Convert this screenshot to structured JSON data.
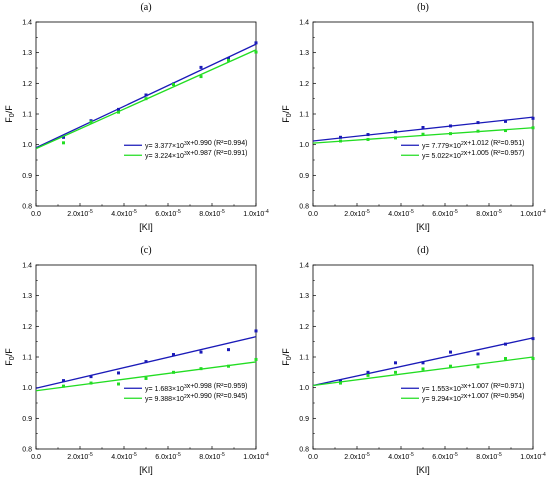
{
  "chart_data": [
    {
      "panel": "(a)",
      "type": "scatter",
      "title": "(a)",
      "xlabel": "[KI]",
      "ylabel": "F0/F",
      "xlim": [
        0,
        0.0001
      ],
      "ylim": [
        0.8,
        1.4
      ],
      "x_tick_labels": [
        "0.0",
        "2.0x10-5",
        "4.0x10-5",
        "6.0x10-5",
        "8.0x10-5",
        "1.0x10-4"
      ],
      "y_tick_labels": [
        "0.8",
        "0.9",
        "1.0",
        "1.1",
        "1.2",
        "1.3",
        "1.4"
      ],
      "grid": false,
      "legend_position": "bottom-right",
      "series": [
        {
          "name": "y= 3.377×10^3x+0.990 (R²=0.994)",
          "color": "#1a1ab8",
          "points": [
            [
              1.25e-05,
              1.024
            ],
            [
              2.5e-05,
              1.078
            ],
            [
              3.75e-05,
              1.115
            ],
            [
              5e-05,
              1.162
            ],
            [
              6.25e-05,
              1.198
            ],
            [
              7.5e-05,
              1.252
            ],
            [
              8.75e-05,
              1.281
            ],
            [
              0.0001,
              1.332
            ]
          ],
          "fit": {
            "slope": 3377,
            "intercept": 0.99
          }
        },
        {
          "name": "y= 3.224×10^3x+0.987 (R²=0.991)",
          "color": "#22dd22",
          "points": [
            [
              1.25e-05,
              1.006
            ],
            [
              2.5e-05,
              1.074
            ],
            [
              3.75e-05,
              1.106
            ],
            [
              5e-05,
              1.15
            ],
            [
              6.25e-05,
              1.196
            ],
            [
              7.5e-05,
              1.222
            ],
            [
              8.75e-05,
              1.275
            ],
            [
              0.0001,
              1.302
            ]
          ],
          "fit": {
            "slope": 3224,
            "intercept": 0.987
          }
        }
      ]
    },
    {
      "panel": "(b)",
      "type": "scatter",
      "title": "(b)",
      "xlabel": "[KI]",
      "ylabel": "F0/F",
      "xlim": [
        0,
        0.0001
      ],
      "ylim": [
        0.8,
        1.4
      ],
      "x_tick_labels": [
        "0.0",
        "2.0x10-5",
        "4.0x10-5",
        "6.0x10-5",
        "8.0x10-5",
        "1.0x10-4"
      ],
      "y_tick_labels": [
        "0.8",
        "0.9",
        "1.0",
        "1.1",
        "1.2",
        "1.3",
        "1.4"
      ],
      "grid": false,
      "legend_position": "bottom-right",
      "series": [
        {
          "name": "y= 7.779×10^2x+1.012 (R²=0.951)",
          "color": "#1a1ab8",
          "points": [
            [
              1.25e-05,
              1.024
            ],
            [
              2.5e-05,
              1.033
            ],
            [
              3.75e-05,
              1.042
            ],
            [
              5e-05,
              1.056
            ],
            [
              6.25e-05,
              1.061
            ],
            [
              7.5e-05,
              1.072
            ],
            [
              8.75e-05,
              1.076
            ],
            [
              0.0001,
              1.086
            ]
          ],
          "fit": {
            "slope": 777.9,
            "intercept": 1.012
          }
        },
        {
          "name": "y= 5.022×10^2x+1.005 (R²=0.957)",
          "color": "#22dd22",
          "points": [
            [
              1.25e-05,
              1.012
            ],
            [
              2.5e-05,
              1.017
            ],
            [
              3.75e-05,
              1.022
            ],
            [
              5e-05,
              1.034
            ],
            [
              6.25e-05,
              1.036
            ],
            [
              7.5e-05,
              1.044
            ],
            [
              8.75e-05,
              1.046
            ],
            [
              0.0001,
              1.055
            ]
          ],
          "fit": {
            "slope": 502.2,
            "intercept": 1.005
          }
        }
      ]
    },
    {
      "panel": "(c)",
      "type": "scatter",
      "title": "(c)",
      "xlabel": "[KI]",
      "ylabel": "F0/F",
      "xlim": [
        0,
        0.0001
      ],
      "ylim": [
        0.8,
        1.4
      ],
      "x_tick_labels": [
        "0.0",
        "2.0x10-5",
        "4.0x10-5",
        "6.0x10-5",
        "8.0x10-5",
        "1.0x10-4"
      ],
      "y_tick_labels": [
        "0.8",
        "0.9",
        "1.0",
        "1.1",
        "1.2",
        "1.3",
        "1.4"
      ],
      "grid": false,
      "legend_position": "bottom-right",
      "series": [
        {
          "name": "y= 1.683×10^3x+0.998 (R²=0.959)",
          "color": "#1a1ab8",
          "points": [
            [
              1.25e-05,
              1.023
            ],
            [
              2.5e-05,
              1.036
            ],
            [
              3.75e-05,
              1.048
            ],
            [
              5e-05,
              1.085
            ],
            [
              6.25e-05,
              1.108
            ],
            [
              7.5e-05,
              1.116
            ],
            [
              8.75e-05,
              1.124
            ],
            [
              0.0001,
              1.185
            ]
          ],
          "fit": {
            "slope": 1683,
            "intercept": 0.998
          }
        },
        {
          "name": "y= 9.388×10^2x+0.990 (R²=0.945)",
          "color": "#22dd22",
          "points": [
            [
              1.25e-05,
              1.005
            ],
            [
              2.5e-05,
              1.015
            ],
            [
              3.75e-05,
              1.012
            ],
            [
              5e-05,
              1.03
            ],
            [
              6.25e-05,
              1.05
            ],
            [
              7.5e-05,
              1.062
            ],
            [
              8.75e-05,
              1.07
            ],
            [
              0.0001,
              1.092
            ]
          ],
          "fit": {
            "slope": 938.8,
            "intercept": 0.99
          }
        }
      ]
    },
    {
      "panel": "(d)",
      "type": "scatter",
      "title": "(d)",
      "xlabel": "[KI]",
      "ylabel": "F0/F",
      "xlim": [
        0,
        0.0001
      ],
      "ylim": [
        0.8,
        1.4
      ],
      "x_tick_labels": [
        "0.0",
        "2.0x10-5",
        "4.0x10-5",
        "6.0x10-5",
        "8.0x10-5",
        "1.0x10-4"
      ],
      "y_tick_labels": [
        "0.8",
        "0.9",
        "1.0",
        "1.1",
        "1.2",
        "1.3",
        "1.4"
      ],
      "grid": false,
      "legend_position": "bottom-right",
      "series": [
        {
          "name": "y= 1.553×10^3x+1.007 (R²=0.971)",
          "color": "#1a1ab8",
          "points": [
            [
              1.25e-05,
              1.022
            ],
            [
              2.5e-05,
              1.05
            ],
            [
              3.75e-05,
              1.081
            ],
            [
              5e-05,
              1.081
            ],
            [
              6.25e-05,
              1.116
            ],
            [
              7.5e-05,
              1.11
            ],
            [
              8.75e-05,
              1.142
            ],
            [
              0.0001,
              1.16
            ]
          ],
          "fit": {
            "slope": 1553,
            "intercept": 1.007
          }
        },
        {
          "name": "y= 9.294×10^2x+1.007 (R²=0.954)",
          "color": "#22dd22",
          "points": [
            [
              1.25e-05,
              1.015
            ],
            [
              2.5e-05,
              1.04
            ],
            [
              3.75e-05,
              1.05
            ],
            [
              5e-05,
              1.061
            ],
            [
              6.25e-05,
              1.07
            ],
            [
              7.5e-05,
              1.068
            ],
            [
              8.75e-05,
              1.095
            ],
            [
              0.0001,
              1.095
            ]
          ],
          "fit": {
            "slope": 929.4,
            "intercept": 1.007
          }
        }
      ]
    }
  ]
}
